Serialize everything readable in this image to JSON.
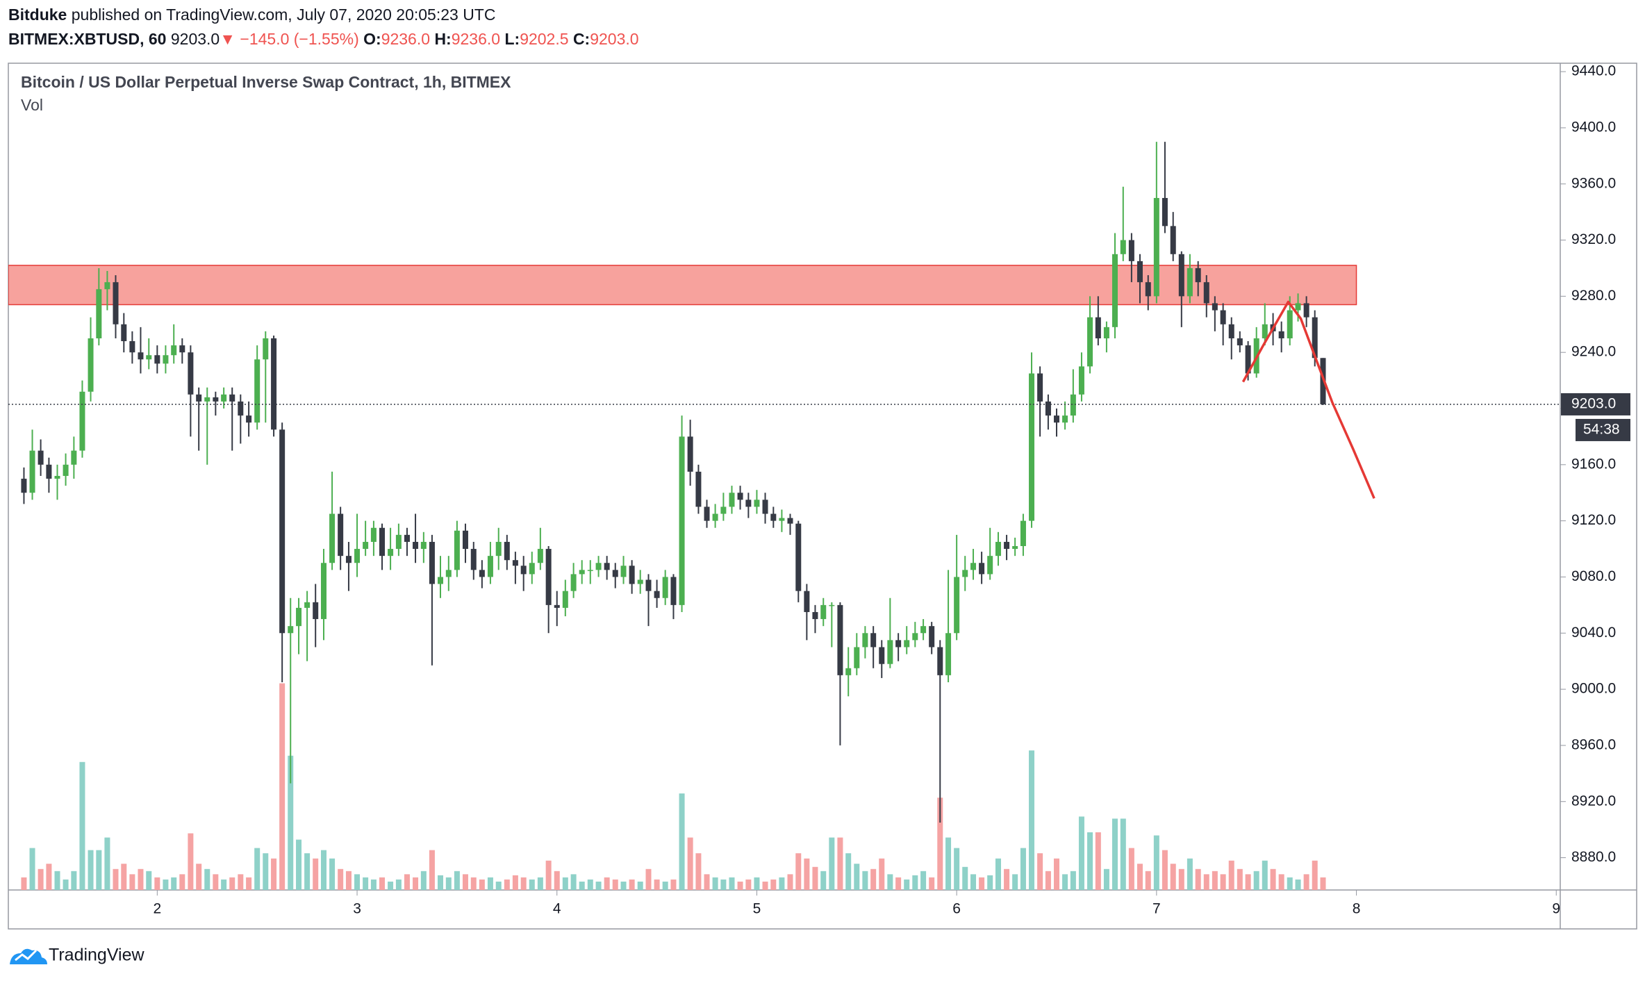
{
  "header": {
    "author": "Bitduke",
    "published": "published on TradingView.com, July 07, 2020 20:05:23 UTC",
    "symbol": "BITMEX:XBTUSD, 60",
    "price": "9203.0",
    "arrow": "▼",
    "change": "−145.0 (−1.55%)",
    "ohlc": [
      {
        "key": "O:",
        "value": "9236.0"
      },
      {
        "key": "H:",
        "value": "9236.0"
      },
      {
        "key": "L:",
        "value": "9202.5"
      },
      {
        "key": "C:",
        "value": "9203.0"
      }
    ]
  },
  "footer": {
    "brand": "TradingView"
  },
  "chart_data": {
    "type": "candlestick",
    "title": "Bitcoin / US Dollar Perpetual Inverse Swap Contract, 1h, BITMEX",
    "subtitle": "Vol",
    "up_color": "#4caf50",
    "down_color": "#363a45",
    "volume_up_color": "#8ed1c8",
    "volume_down_color": "#f5a3a3",
    "xlim": [
      1.255,
      9.02
    ],
    "xticks": [
      2,
      3,
      4,
      5,
      6,
      7,
      8,
      9
    ],
    "ylim": [
      8857,
      9446
    ],
    "yticks": [
      {
        "value": 8880,
        "label": "8880.0"
      },
      {
        "value": 8920,
        "label": "8920.0"
      },
      {
        "value": 8960,
        "label": "8960.0"
      },
      {
        "value": 9000,
        "label": "9000.0"
      },
      {
        "value": 9040,
        "label": "9040.0"
      },
      {
        "value": 9080,
        "label": "9080.0"
      },
      {
        "value": 9120,
        "label": "9120.0"
      },
      {
        "value": 9160,
        "label": "9160.0"
      },
      {
        "value": 9200,
        "label": "9200.0"
      },
      {
        "value": 9240,
        "label": "9240.0"
      },
      {
        "value": 9280,
        "label": "9280.0"
      },
      {
        "value": 9320,
        "label": "9320.0"
      },
      {
        "value": 9360,
        "label": "9360.0"
      },
      {
        "value": 9400,
        "label": "9400.0"
      },
      {
        "value": 9440,
        "label": "9440.0"
      }
    ],
    "volume_ylim": [
      0,
      200
    ],
    "zone": {
      "low": 9274,
      "high": 9302,
      "x_end": 8,
      "color": "#f7a29d"
    },
    "projection": {
      "color": "#e53935",
      "x": [
        7.433,
        7.538,
        7.659,
        7.722,
        7.801,
        7.879,
        7.984,
        8.089
      ],
      "y": [
        9219,
        9246,
        9276,
        9264,
        9234,
        9204.5,
        9171,
        9136
      ]
    },
    "last_price": {
      "value": 9203,
      "label": "9203.0"
    },
    "countdown": "54:38",
    "x": [
      1.333,
      1.375,
      1.417,
      1.458,
      1.5,
      1.542,
      1.583,
      1.625,
      1.667,
      1.708,
      1.75,
      1.792,
      1.833,
      1.875,
      1.917,
      1.958,
      2,
      2.042,
      2.083,
      2.125,
      2.167,
      2.208,
      2.25,
      2.292,
      2.333,
      2.375,
      2.417,
      2.458,
      2.5,
      2.542,
      2.583,
      2.625,
      2.667,
      2.708,
      2.75,
      2.792,
      2.833,
      2.875,
      2.917,
      2.958,
      3,
      3.042,
      3.083,
      3.125,
      3.167,
      3.208,
      3.25,
      3.292,
      3.333,
      3.375,
      3.417,
      3.458,
      3.5,
      3.542,
      3.583,
      3.625,
      3.667,
      3.708,
      3.75,
      3.792,
      3.833,
      3.875,
      3.917,
      3.958,
      4,
      4.042,
      4.083,
      4.125,
      4.167,
      4.208,
      4.25,
      4.292,
      4.333,
      4.375,
      4.417,
      4.458,
      4.5,
      4.542,
      4.583,
      4.625,
      4.667,
      4.708,
      4.75,
      4.792,
      4.833,
      4.875,
      4.917,
      4.958,
      5,
      5.042,
      5.083,
      5.125,
      5.167,
      5.208,
      5.25,
      5.292,
      5.333,
      5.375,
      5.417,
      5.458,
      5.5,
      5.542,
      5.583,
      5.625,
      5.667,
      5.708,
      5.75,
      5.792,
      5.833,
      5.875,
      5.917,
      5.958,
      6,
      6.042,
      6.083,
      6.125,
      6.167,
      6.208,
      6.25,
      6.292,
      6.333,
      6.375,
      6.417,
      6.458,
      6.5,
      6.542,
      6.583,
      6.625,
      6.667,
      6.708,
      6.75,
      6.792,
      6.833,
      6.875,
      6.917,
      6.958,
      7,
      7.042,
      7.083,
      7.125,
      7.167,
      7.208,
      7.25,
      7.292,
      7.333,
      7.375,
      7.417,
      7.458,
      7.5,
      7.542,
      7.583,
      7.625,
      7.667,
      7.708,
      7.75,
      7.792,
      7.833
    ],
    "open": [
      9150,
      9140,
      9170,
      9160,
      9150,
      9152,
      9160,
      9170,
      9212,
      9250,
      9285,
      9290,
      9260,
      9248,
      9240,
      9235,
      9238,
      9232,
      9238,
      9245,
      9240,
      9210,
      9205,
      9208,
      9205,
      9210,
      9205,
      9195,
      9190,
      9235,
      9250,
      9185,
      9040,
      9045,
      9058,
      9062,
      9050,
      9090,
      9125,
      9095,
      9090,
      9100,
      9105,
      9115,
      9095,
      9100,
      9110,
      9105,
      9100,
      9105,
      9075,
      9080,
      9085,
      9113,
      9100,
      9085,
      9080,
      9095,
      9105,
      9092,
      9088,
      9082,
      9090,
      9100,
      9060,
      9058,
      9070,
      9082,
      9085,
      9085,
      9090,
      9085,
      9080,
      9088,
      9075,
      9078,
      9070,
      9065,
      9080,
      9060,
      9180,
      9155,
      9130,
      9120,
      9125,
      9130,
      9140,
      9135,
      9130,
      9135,
      9125,
      9120,
      9122,
      9118,
      9070,
      9055,
      9050,
      9060,
      9060,
      9010,
      9015,
      9030,
      9040,
      9030,
      9018,
      9035,
      9030,
      9035,
      9040,
      9045,
      9030,
      9010,
      9040,
      9080,
      9085,
      9090,
      9082,
      9095,
      9105,
      9100,
      9102,
      9120,
      9225,
      9205,
      9195,
      9190,
      9195,
      9210,
      9230,
      9265,
      9250,
      9258,
      9310,
      9320,
      9305,
      9290,
      9280,
      9350,
      9330,
      9310,
      9280,
      9300,
      9290,
      9275,
      9270,
      9260,
      9250,
      9245,
      9225,
      9250,
      9260,
      9255,
      9250,
      9270,
      9275,
      9265,
      9236
    ],
    "high": [
      9158,
      9185,
      9178,
      9165,
      9160,
      9168,
      9180,
      9220,
      9265,
      9300,
      9298,
      9295,
      9268,
      9255,
      9258,
      9250,
      9245,
      9245,
      9260,
      9250,
      9245,
      9215,
      9215,
      9212,
      9215,
      9215,
      9210,
      9205,
      9245,
      9255,
      9252,
      9190,
      9065,
      9065,
      9070,
      9075,
      9100,
      9155,
      9130,
      9105,
      9125,
      9120,
      9120,
      9118,
      9115,
      9118,
      9115,
      9125,
      9112,
      9110,
      9095,
      9095,
      9120,
      9118,
      9105,
      9092,
      9105,
      9115,
      9110,
      9098,
      9095,
      9098,
      9115,
      9102,
      9070,
      9078,
      9090,
      9092,
      9092,
      9095,
      9095,
      9090,
      9095,
      9092,
      9085,
      9082,
      9078,
      9085,
      9082,
      9195,
      9192,
      9160,
      9135,
      9132,
      9140,
      9145,
      9145,
      9140,
      9142,
      9140,
      9130,
      9128,
      9125,
      9120,
      9075,
      9060,
      9065,
      9062,
      9062,
      9030,
      9040,
      9045,
      9045,
      9035,
      9065,
      9040,
      9045,
      9048,
      9050,
      9048,
      9035,
      9085,
      9110,
      9095,
      9100,
      9098,
      9115,
      9112,
      9110,
      9108,
      9125,
      9240,
      9230,
      9210,
      9200,
      9205,
      9228,
      9240,
      9280,
      9280,
      9262,
      9325,
      9358,
      9325,
      9310,
      9295,
      9390,
      9390,
      9340,
      9312,
      9310,
      9305,
      9295,
      9280,
      9275,
      9265,
      9255,
      9248,
      9258,
      9275,
      9268,
      9262,
      9280,
      9282,
      9280,
      9270,
      9236
    ],
    "low": [
      9132,
      9135,
      9152,
      9140,
      9135,
      9145,
      9150,
      9165,
      9205,
      9245,
      9270,
      9250,
      9240,
      9232,
      9225,
      9228,
      9225,
      9225,
      9232,
      9232,
      9180,
      9170,
      9160,
      9195,
      9200,
      9170,
      9175,
      9180,
      9185,
      9190,
      9180,
      9005,
      8933,
      9025,
      9020,
      9030,
      9035,
      9085,
      9085,
      9070,
      9080,
      9095,
      9095,
      9085,
      9085,
      9095,
      9095,
      9090,
      9090,
      9017,
      9065,
      9070,
      9080,
      9090,
      9078,
      9072,
      9075,
      9085,
      9085,
      9075,
      9070,
      9075,
      9085,
      9040,
      9045,
      9052,
      9065,
      9075,
      9075,
      9080,
      9078,
      9072,
      9075,
      9068,
      9068,
      9045,
      9058,
      9060,
      9050,
      9055,
      9145,
      9125,
      9115,
      9115,
      9120,
      9125,
      9128,
      9122,
      9125,
      9118,
      9115,
      9112,
      9110,
      9062,
      9035,
      9040,
      9045,
      9030,
      8960,
      8995,
      9010,
      9022,
      9015,
      9008,
      9015,
      9020,
      9025,
      9030,
      9035,
      9025,
      8905,
      9005,
      9035,
      9070,
      9078,
      9075,
      9078,
      9088,
      9092,
      9095,
      9095,
      9115,
      9180,
      9185,
      9180,
      9185,
      9190,
      9205,
      9225,
      9245,
      9240,
      9250,
      9305,
      9290,
      9275,
      9270,
      9275,
      9325,
      9305,
      9258,
      9275,
      9280,
      9265,
      9255,
      9245,
      9235,
      9240,
      9220,
      9222,
      9245,
      9245,
      9240,
      9245,
      9262,
      9258,
      9230,
      9202.5
    ],
    "close": [
      9140,
      9170,
      9160,
      9150,
      9152,
      9160,
      9170,
      9212,
      9250,
      9285,
      9290,
      9260,
      9248,
      9240,
      9235,
      9238,
      9232,
      9238,
      9245,
      9240,
      9210,
      9205,
      9208,
      9205,
      9210,
      9205,
      9195,
      9190,
      9235,
      9250,
      9185,
      9040,
      9045,
      9058,
      9062,
      9050,
      9090,
      9125,
      9095,
      9090,
      9100,
      9105,
      9115,
      9095,
      9100,
      9110,
      9105,
      9100,
      9105,
      9075,
      9080,
      9085,
      9113,
      9100,
      9085,
      9080,
      9095,
      9105,
      9092,
      9088,
      9082,
      9090,
      9100,
      9060,
      9058,
      9070,
      9082,
      9085,
      9085,
      9090,
      9085,
      9080,
      9088,
      9075,
      9078,
      9070,
      9065,
      9080,
      9060,
      9180,
      9155,
      9130,
      9120,
      9125,
      9130,
      9140,
      9135,
      9130,
      9135,
      9125,
      9120,
      9122,
      9118,
      9070,
      9055,
      9050,
      9060,
      9060,
      9010,
      9015,
      9030,
      9040,
      9030,
      9018,
      9035,
      9030,
      9035,
      9040,
      9045,
      9030,
      9010,
      9040,
      9080,
      9085,
      9090,
      9082,
      9095,
      9105,
      9100,
      9102,
      9120,
      9225,
      9205,
      9195,
      9190,
      9195,
      9210,
      9230,
      9265,
      9250,
      9258,
      9310,
      9320,
      9305,
      9290,
      9280,
      9350,
      9330,
      9310,
      9280,
      9300,
      9290,
      9275,
      9270,
      9260,
      9250,
      9245,
      9225,
      9250,
      9260,
      9255,
      9250,
      9270,
      9275,
      9265,
      9236,
      9203
    ],
    "volume": [
      12,
      40,
      20,
      25,
      18,
      10,
      18,
      122,
      38,
      38,
      50,
      20,
      25,
      15,
      20,
      18,
      12,
      10,
      12,
      15,
      54,
      25,
      20,
      15,
      10,
      12,
      15,
      12,
      40,
      35,
      30,
      197,
      128,
      48,
      35,
      30,
      38,
      30,
      20,
      18,
      15,
      12,
      10,
      12,
      8,
      10,
      15,
      12,
      18,
      38,
      14,
      12,
      18,
      15,
      12,
      10,
      12,
      8,
      10,
      14,
      12,
      10,
      12,
      28,
      18,
      12,
      15,
      8,
      10,
      8,
      12,
      10,
      8,
      10,
      8,
      20,
      10,
      8,
      10,
      92,
      50,
      35,
      15,
      12,
      10,
      12,
      8,
      10,
      12,
      8,
      10,
      12,
      15,
      35,
      30,
      22,
      18,
      50,
      50,
      35,
      25,
      18,
      20,
      30,
      15,
      12,
      10,
      14,
      18,
      12,
      88,
      50,
      40,
      22,
      15,
      12,
      14,
      30,
      20,
      15,
      40,
      133,
      35,
      18,
      30,
      15,
      18,
      70,
      55,
      55,
      20,
      68,
      68,
      40,
      25,
      18,
      52,
      38,
      25,
      20,
      30,
      20,
      15,
      18,
      15,
      28,
      20,
      15,
      18,
      28,
      20,
      15,
      12,
      10,
      15,
      28,
      12
    ]
  }
}
